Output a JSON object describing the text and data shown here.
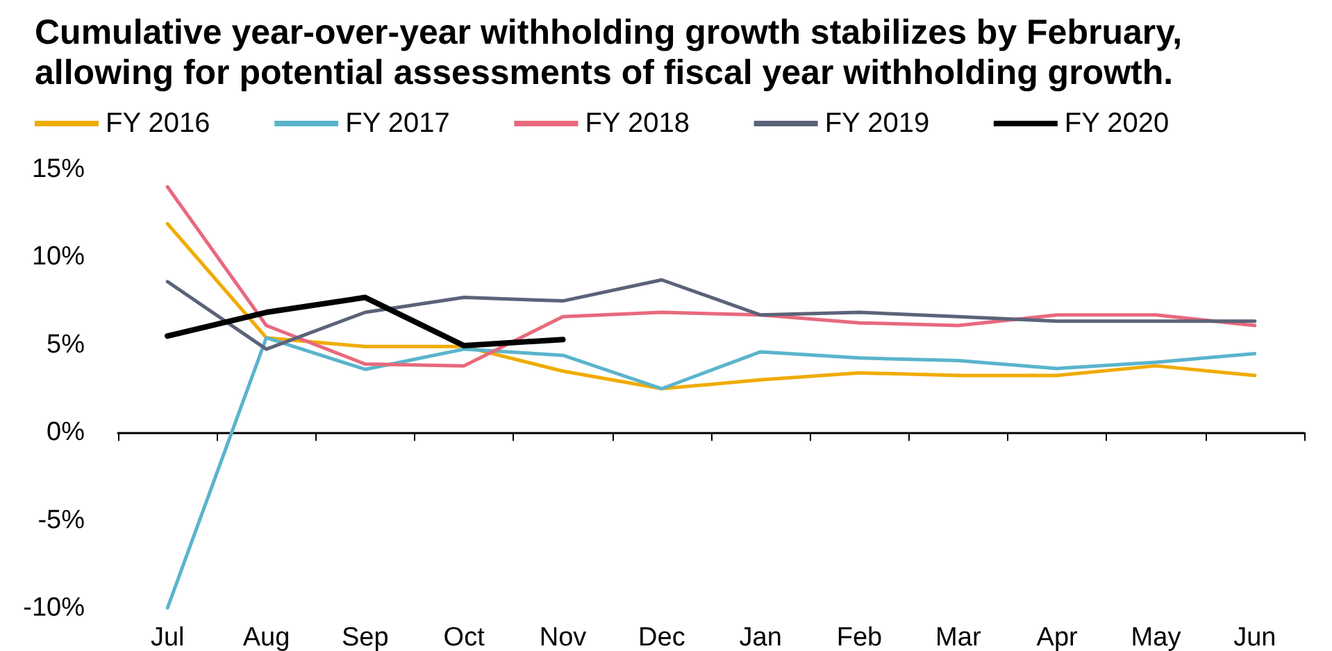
{
  "chart_data": {
    "type": "line",
    "title": "Cumulative year-over-year withholding growth stabilizes by February,\nallowing for potential assessments of fiscal year withholding growth.",
    "categories": [
      "Jul",
      "Aug",
      "Sep",
      "Oct",
      "Nov",
      "Dec",
      "Jan",
      "Feb",
      "Mar",
      "Apr",
      "May",
      "Jun"
    ],
    "series": [
      {
        "name": "FY 2016",
        "color": "#f0ab00",
        "values": [
          11.9,
          5.4,
          4.9,
          4.9,
          3.5,
          2.5,
          3.0,
          3.4,
          3.25,
          3.25,
          3.8,
          3.25
        ]
      },
      {
        "name": "FY 2017",
        "color": "#5ab4cc",
        "values": [
          -10,
          5.4,
          3.6,
          4.75,
          4.4,
          2.5,
          4.6,
          4.25,
          4.1,
          3.65,
          4.0,
          4.5
        ]
      },
      {
        "name": "FY 2018",
        "color": "#e8697d",
        "values": [
          14.0,
          6.1,
          3.9,
          3.8,
          6.6,
          6.85,
          6.7,
          6.25,
          6.1,
          6.7,
          6.7,
          6.1
        ]
      },
      {
        "name": "FY 2019",
        "color": "#5b6379",
        "values": [
          8.6,
          4.75,
          6.85,
          7.7,
          7.5,
          8.7,
          6.7,
          6.85,
          6.6,
          6.35,
          6.35,
          6.35
        ]
      },
      {
        "name": "FY 2020",
        "color": "#000000",
        "values": [
          5.5,
          6.85,
          7.7,
          4.95,
          5.3,
          null,
          null,
          null,
          null,
          null,
          null,
          null
        ]
      }
    ],
    "ylim": [
      -10,
      15
    ],
    "yticks": [
      {
        "value": -10,
        "label": "-10%"
      },
      {
        "value": -5,
        "label": "-5%"
      },
      {
        "value": 0,
        "label": "0%"
      },
      {
        "value": 5,
        "label": "5%"
      },
      {
        "value": 10,
        "label": "10%"
      },
      {
        "value": 15,
        "label": "15%"
      }
    ],
    "legend": "top",
    "marker": "none",
    "line_style": "solid"
  }
}
